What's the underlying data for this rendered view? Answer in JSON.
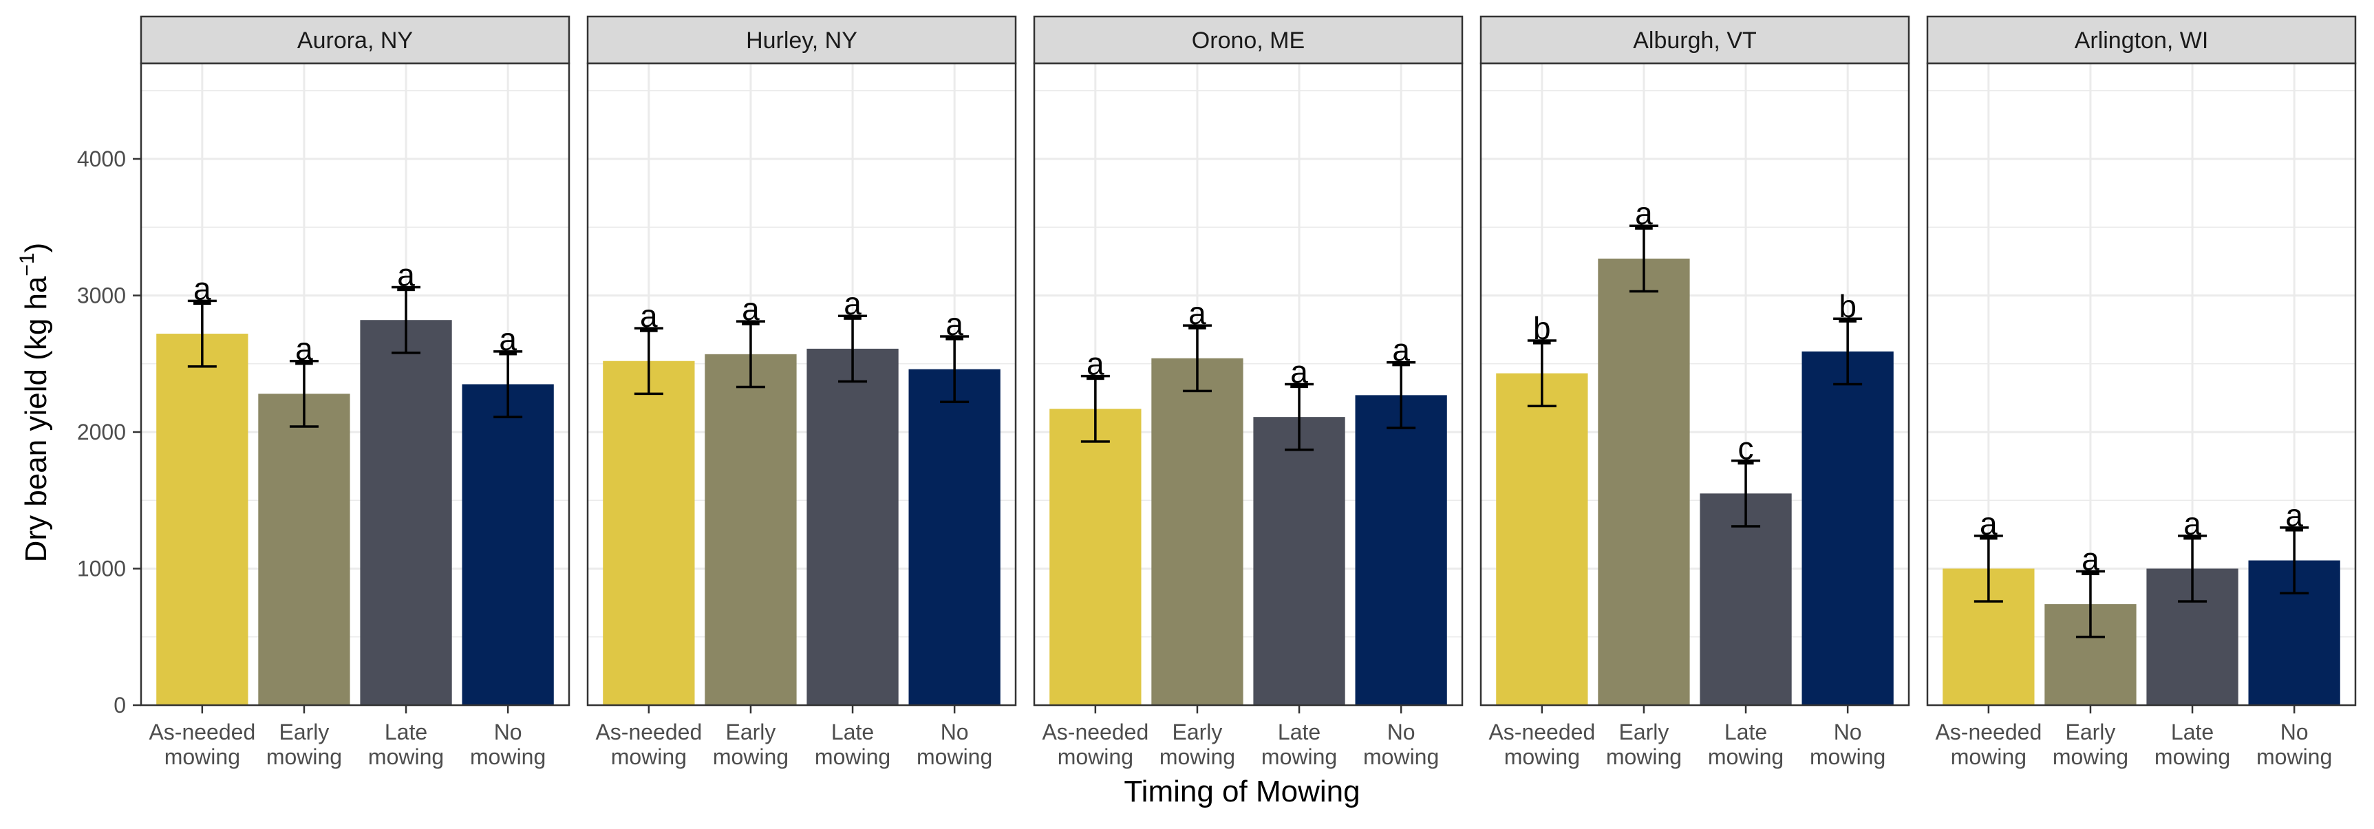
{
  "chart_data": {
    "type": "bar",
    "xlabel": "Timing of Mowing",
    "ylabel": "Dry bean yield (kg ha",
    "ylabel_sup": "−1",
    "ylabel_end": ")",
    "ylim": [
      0,
      4700
    ],
    "yticks": [
      0,
      1000,
      2000,
      3000,
      4000
    ],
    "grid": true,
    "categories": [
      "As-needed mowing",
      "Early mowing",
      "Late mowing",
      "No mowing"
    ],
    "category_lines": [
      [
        "As-needed",
        "mowing"
      ],
      [
        "Early",
        "mowing"
      ],
      [
        "Late",
        "mowing"
      ],
      [
        "No",
        "mowing"
      ]
    ],
    "colors": [
      "#DFC745",
      "#8B8764",
      "#4B4E5A",
      "#03235A"
    ],
    "panels": [
      {
        "title": "Aurora, NY",
        "values": [
          2720,
          2280,
          2820,
          2350
        ],
        "err": [
          240,
          240,
          240,
          240
        ],
        "letters": [
          "a",
          "a",
          "a",
          "a"
        ]
      },
      {
        "title": "Hurley, NY",
        "values": [
          2520,
          2570,
          2610,
          2460
        ],
        "err": [
          240,
          240,
          240,
          240
        ],
        "letters": [
          "a",
          "a",
          "a",
          "a"
        ]
      },
      {
        "title": "Orono, ME",
        "values": [
          2170,
          2540,
          2110,
          2270
        ],
        "err": [
          240,
          240,
          240,
          240
        ],
        "letters": [
          "a",
          "a",
          "a",
          "a"
        ]
      },
      {
        "title": "Alburgh, VT",
        "values": [
          2430,
          3270,
          1550,
          2590
        ],
        "err": [
          240,
          240,
          240,
          240
        ],
        "letters": [
          "b",
          "a",
          "c",
          "b"
        ]
      },
      {
        "title": "Arlington, WI",
        "values": [
          1000,
          740,
          1000,
          1060
        ],
        "err": [
          240,
          240,
          240,
          240
        ],
        "letters": [
          "a",
          "a",
          "a",
          "a"
        ]
      }
    ]
  }
}
